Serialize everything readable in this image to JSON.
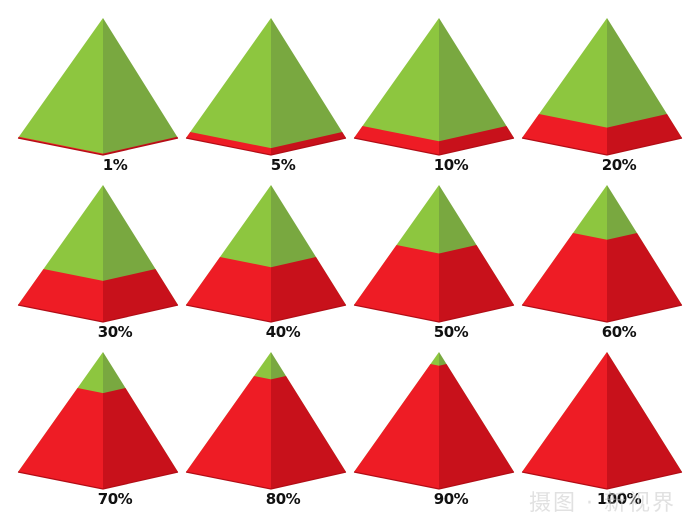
{
  "colors": {
    "green_left": "#8dc63f",
    "green_right": "#79a840",
    "red_left": "#ee1c25",
    "red_right": "#c8111b",
    "red_base_edge": "#b20d16"
  },
  "pyramids": [
    {
      "label": "1%",
      "fill_percent": 1
    },
    {
      "label": "5%",
      "fill_percent": 5
    },
    {
      "label": "10%",
      "fill_percent": 10
    },
    {
      "label": "20%",
      "fill_percent": 20
    },
    {
      "label": "30%",
      "fill_percent": 30
    },
    {
      "label": "40%",
      "fill_percent": 40
    },
    {
      "label": "50%",
      "fill_percent": 50
    },
    {
      "label": "60%",
      "fill_percent": 60
    },
    {
      "label": "70%",
      "fill_percent": 70
    },
    {
      "label": "80%",
      "fill_percent": 80
    },
    {
      "label": "90%",
      "fill_percent": 90
    },
    {
      "label": "100%",
      "fill_percent": 100
    }
  ],
  "watermark": {
    "text": "摄图 · 新视界"
  }
}
